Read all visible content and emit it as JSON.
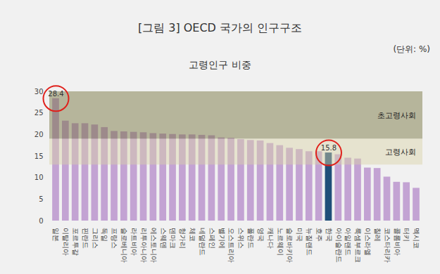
{
  "chart_data": {
    "type": "bar",
    "title": "[그림 3] OECD 국가의 인구구조",
    "unit_label": "(단위: %)",
    "subtitle": "고령인구 비중",
    "categories": [
      "일본",
      "이탈리아",
      "포르투갈",
      "핀란드",
      "그리스",
      "독일",
      "프랑스",
      "슬로베니아",
      "라트비아",
      "리투아니아",
      "에스토니아",
      "스웨덴",
      "덴마크",
      "헝가리",
      "체코",
      "네덜란드",
      "스페인",
      "벨기에",
      "오스트리아",
      "스위스",
      "폴란드",
      "영국",
      "캐나다",
      "노르웨이",
      "슬로바키아",
      "미국",
      "뉴질랜드",
      "호주",
      "한국",
      "아이슬란드",
      "아일랜드",
      "룩셈부르크",
      "이스라엘",
      "칠레",
      "코스타리카",
      "콜롬비아",
      "터키",
      "멕시코"
    ],
    "values": [
      28.4,
      23.2,
      22.6,
      22.6,
      22.3,
      21.7,
      20.8,
      20.7,
      20.6,
      20.5,
      20.3,
      20.2,
      20.1,
      20.0,
      20.0,
      19.9,
      19.8,
      19.3,
      19.2,
      18.9,
      18.7,
      18.6,
      18.0,
      17.5,
      16.9,
      16.6,
      16.1,
      16.1,
      15.8,
      15.4,
      14.6,
      14.4,
      12.3,
      12.2,
      10.2,
      9.0,
      8.9,
      7.6
    ],
    "colors": [
      "#c3a3d3",
      "#c3a3d3",
      "#c3a3d3",
      "#c3a3d3",
      "#c3a3d3",
      "#c3a3d3",
      "#c3a3d3",
      "#c3a3d3",
      "#c3a3d3",
      "#c3a3d3",
      "#c3a3d3",
      "#c3a3d3",
      "#c3a3d3",
      "#c3a3d3",
      "#c3a3d3",
      "#c3a3d3",
      "#c3a3d3",
      "#c3a3d3",
      "#c3a3d3",
      "#c3a3d3",
      "#c3a3d3",
      "#c3a3d3",
      "#c3a3d3",
      "#c3a3d3",
      "#c3a3d3",
      "#c3a3d3",
      "#c3a3d3",
      "#c3a3d3",
      "#1f4e79",
      "#c3a3d3",
      "#c3a3d3",
      "#c3a3d3",
      "#c3a3d3",
      "#c3a3d3",
      "#c3a3d3",
      "#c3a3d3",
      "#c3a3d3",
      "#c3a3d3"
    ],
    "bands": [
      {
        "label": "초고령사회",
        "from": 19,
        "to": 30,
        "color": "#6f6c33"
      },
      {
        "label": "고령사회",
        "from": 13,
        "to": 19,
        "color": "#d9d3a6"
      }
    ],
    "annotations": [
      {
        "category": "일본",
        "label": "28.4"
      },
      {
        "category": "한국",
        "label": "15.8"
      }
    ],
    "ylim": [
      0,
      30
    ],
    "yticks": [
      0,
      5,
      10,
      15,
      20,
      25,
      30
    ],
    "grid": false
  }
}
